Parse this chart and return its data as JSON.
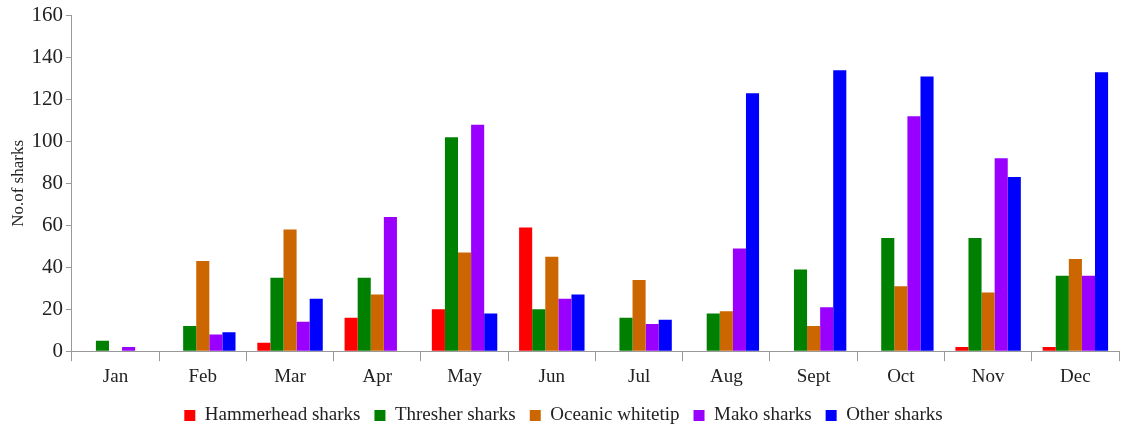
{
  "chart_data": {
    "type": "bar",
    "ylabel": "No.of sharks",
    "categories": [
      "Jan",
      "Feb",
      "Mar",
      "Apr",
      "May",
      "Jun",
      "Jul",
      "Aug",
      "Sept",
      "Oct",
      "Nov",
      "Dec"
    ],
    "series": [
      {
        "name": "Hammerhead sharks",
        "color": "#ff0000",
        "values": [
          0,
          0,
          4,
          16,
          20,
          59,
          0,
          0,
          0,
          0,
          2,
          2
        ]
      },
      {
        "name": "Thresher sharks",
        "color": "#008000",
        "values": [
          5,
          12,
          35,
          35,
          102,
          20,
          16,
          18,
          39,
          54,
          54,
          36
        ]
      },
      {
        "name": "Oceanic whitetip",
        "color": "#cc6600",
        "values": [
          0,
          43,
          58,
          27,
          47,
          45,
          34,
          19,
          12,
          31,
          28,
          44
        ]
      },
      {
        "name": "Mako sharks",
        "color": "#9900ff",
        "values": [
          2,
          8,
          14,
          64,
          108,
          25,
          13,
          49,
          21,
          112,
          92,
          36
        ]
      },
      {
        "name": "Other sharks",
        "color": "#0000ff",
        "values": [
          0,
          9,
          25,
          0,
          18,
          27,
          15,
          123,
          134,
          131,
          83,
          133
        ]
      }
    ],
    "ylim": [
      0,
      160
    ],
    "yticks": [
      0,
      20,
      40,
      60,
      80,
      100,
      120,
      140,
      160
    ],
    "grid": false,
    "legend": "bottom"
  }
}
